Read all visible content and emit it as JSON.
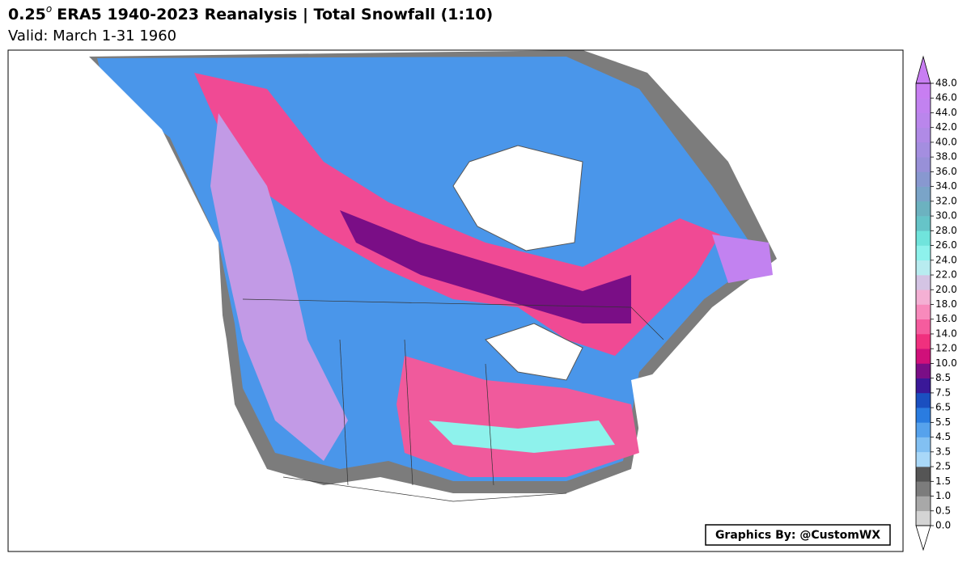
{
  "header": {
    "title": {
      "number": "0.25",
      "superscript": "o",
      "text": "ERA5 1940-2023 Reanalysis | Total Snowfall (1:10)"
    },
    "subtitle": "Valid: March 1-31 1960"
  },
  "colorbar": {
    "ticks": [
      {
        "value": 0,
        "label": "0.0"
      },
      0.5,
      {
        "value": 1,
        "label": "1.0"
      },
      1.5,
      2.5,
      3.5,
      4.5,
      5.5,
      6.5,
      7.5,
      8.5,
      {
        "value": 10,
        "label": "10.0"
      },
      {
        "value": 12,
        "label": "12.0"
      },
      {
        "value": 14,
        "label": "14.0"
      },
      {
        "value": 16,
        "label": "16.0"
      },
      {
        "value": 18,
        "label": "18.0"
      },
      {
        "value": 20,
        "label": "20.0"
      },
      {
        "value": 22,
        "label": "22.0"
      },
      {
        "value": 24,
        "label": "24.0"
      },
      {
        "value": 26,
        "label": "26.0"
      },
      {
        "value": 28,
        "label": "28.0"
      },
      {
        "value": 30,
        "label": "30.0"
      },
      {
        "value": 32,
        "label": "32.0"
      },
      {
        "value": 34,
        "label": "34.0"
      },
      {
        "value": 36,
        "label": "36.0"
      },
      {
        "value": 38,
        "label": "38.0"
      },
      {
        "value": 40,
        "label": "40.0"
      },
      {
        "value": 42,
        "label": "42.0"
      },
      {
        "value": 44,
        "label": "44.0"
      },
      {
        "value": 46,
        "label": "46.0"
      },
      {
        "value": 48,
        "label": "48.0"
      }
    ],
    "colors": [
      "#d4d4d4",
      "#a8a8a8",
      "#7c7c7c",
      "#555555",
      "#a9d8f8",
      "#82c0f2",
      "#56a2ec",
      "#2a7ce0",
      "#1a4fc0",
      "#3a1898",
      "#7a0e86",
      "#d0107a",
      "#f0307e",
      "#f55c9e",
      "#f88abc",
      "#f4b0d4",
      "#d4c4e4",
      "#b8ecf0",
      "#8ef2ec",
      "#70e4dc",
      "#66c4c8",
      "#6cb2c0",
      "#7aa4c8",
      "#8898d0",
      "#9890d8",
      "#a48ee0",
      "#b08ae6",
      "#ba86ec",
      "#c282f0",
      "#c87ef2"
    ],
    "over_color": "#c87ef2",
    "under_color": "#ffffff"
  },
  "credit": "Graphics By: @CustomWX"
}
